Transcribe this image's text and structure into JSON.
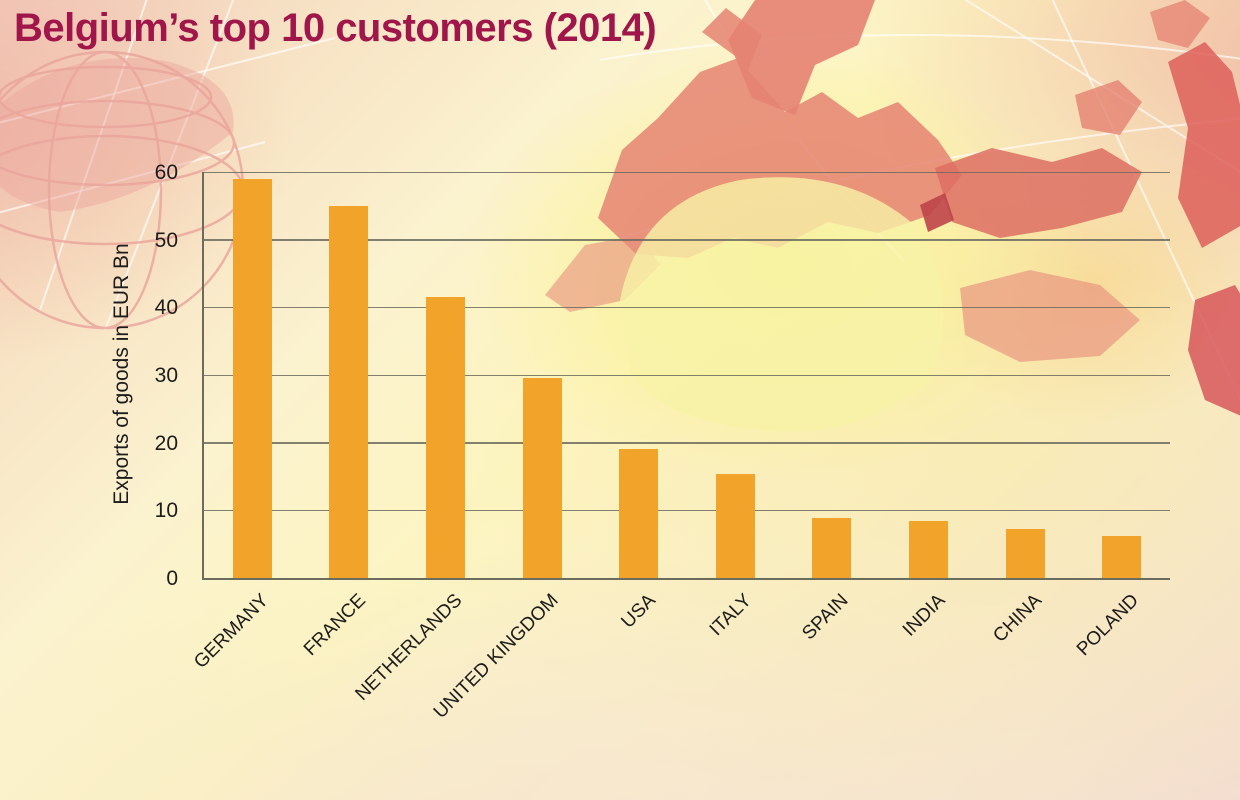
{
  "title": "Belgium’s top 10 customers (2014)",
  "chart_data": {
    "type": "bar",
    "title": "Belgium’s top 10 customers (2014)",
    "categories": [
      "GERMANY",
      "FRANCE",
      "NETHERLANDS",
      "UNITED KINGDOM",
      "USA",
      "ITALY",
      "SPAIN",
      "INDIA",
      "CHINA",
      "POLAND"
    ],
    "values": [
      59,
      55,
      41.5,
      29.5,
      19,
      15.4,
      8.8,
      8.4,
      7.3,
      6.2
    ],
    "xlabel": "",
    "ylabel": "Exports of goods in EUR Bn",
    "ylim": [
      0,
      60
    ],
    "yticks": [
      0,
      10,
      20,
      30,
      40,
      50,
      60
    ],
    "grid": true,
    "legend": "none",
    "colors": {
      "title": "#A0164B",
      "bar": "#F2A42A",
      "axis": "#6B6B5E",
      "text": "#1C1C1C"
    }
  }
}
